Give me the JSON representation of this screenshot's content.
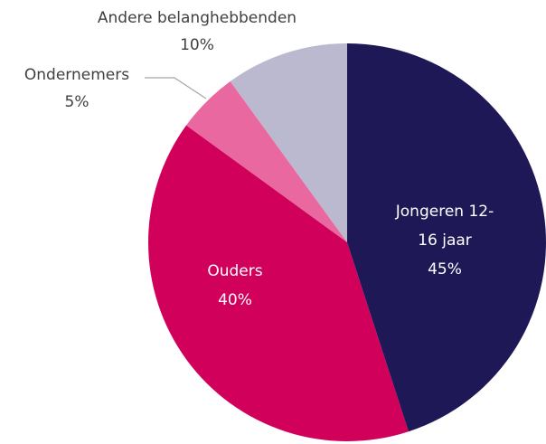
{
  "chart_data": {
    "type": "pie",
    "categories": [
      "Jongeren 12-16 jaar",
      "Ouders",
      "Ondernemers",
      "Andere belanghebbenden"
    ],
    "values": [
      45,
      40,
      5,
      10
    ],
    "value_labels": [
      "45%",
      "40%",
      "5%",
      "10%"
    ],
    "colors": [
      "#1e1856",
      "#d1005b",
      "#e8689f",
      "#bbb9cf"
    ]
  }
}
